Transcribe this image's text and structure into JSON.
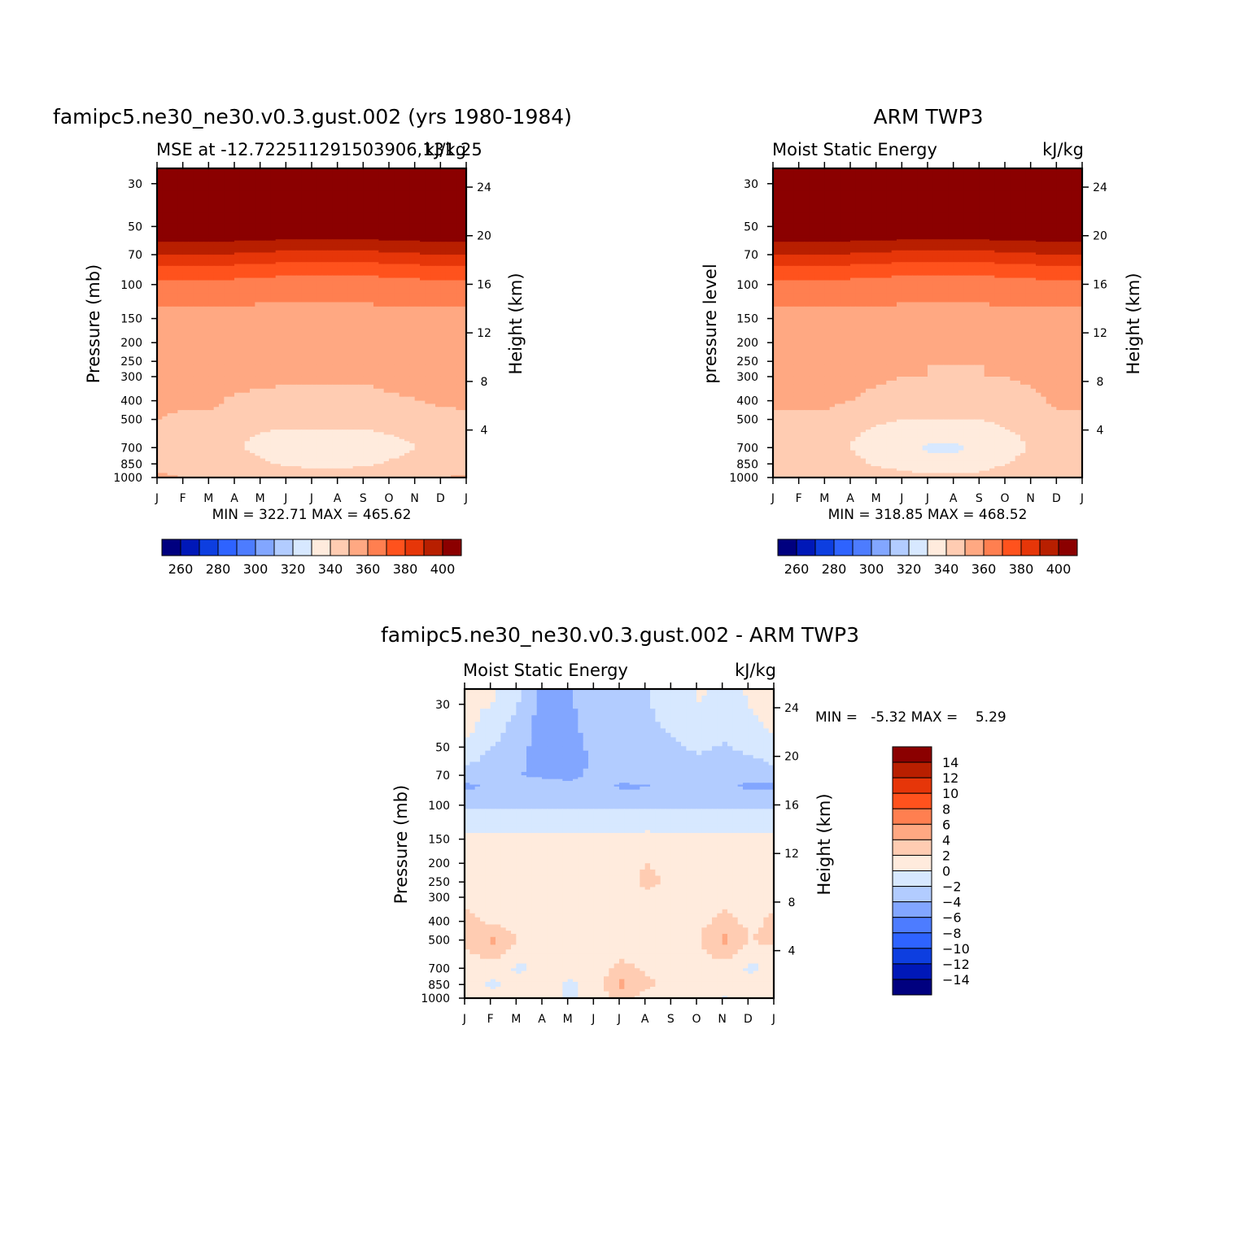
{
  "chart_data": [
    {
      "type": "heatmap",
      "panel": "model",
      "title": "famipc5.ne30_ne30.v0.3.gust.002 (yrs 1980-1984)",
      "subtitle_left": "MSE at -12.722511291503906,131.25",
      "subtitle_right": "kJ/kg",
      "ylabel": "Pressure (mb)",
      "y2label": "Height (km)",
      "x_ticks": [
        "J",
        "F",
        "M",
        "A",
        "M",
        "J",
        "J",
        "A",
        "S",
        "O",
        "N",
        "D",
        "J"
      ],
      "pressure_ticks": [
        30,
        50,
        70,
        100,
        150,
        200,
        250,
        300,
        400,
        500,
        700,
        850,
        1000
      ],
      "height_ticks": [
        4,
        8,
        12,
        16,
        20,
        24
      ],
      "ylim_mb": [
        1000,
        25
      ],
      "stats": "MIN = 322.71 MAX = 465.62",
      "levels_kJkg": [
        {
          "p": 25,
          "v": [
            405,
            405,
            405,
            405,
            405,
            405,
            405,
            405,
            405,
            405,
            405,
            405,
            405
          ]
        },
        {
          "p": 55,
          "v": [
            400,
            400,
            400,
            399,
            398,
            397,
            396,
            396,
            397,
            398,
            399,
            400,
            400
          ]
        },
        {
          "p": 60,
          "v": [
            390,
            390,
            390,
            389,
            388,
            387,
            386,
            386,
            387,
            388,
            389,
            390,
            390
          ]
        },
        {
          "p": 70,
          "v": [
            380,
            380,
            380,
            379,
            378,
            377,
            376,
            376,
            377,
            378,
            379,
            380,
            380
          ]
        },
        {
          "p": 80,
          "v": [
            370,
            370,
            370,
            369,
            368,
            367,
            366,
            366,
            367,
            368,
            369,
            370,
            370
          ]
        },
        {
          "p": 95,
          "v": [
            360,
            360,
            360,
            359,
            358,
            357,
            356,
            356,
            357,
            358,
            359,
            360,
            360
          ]
        },
        {
          "p": 130,
          "v": [
            350,
            350,
            350,
            350,
            349,
            349,
            348,
            348,
            349,
            350,
            350,
            350,
            350
          ]
        },
        {
          "p": 300,
          "v": [
            342,
            342,
            342,
            342,
            342,
            341,
            341,
            341,
            341,
            342,
            342,
            342,
            342
          ]
        },
        {
          "p": 400,
          "v": [
            341,
            341,
            341,
            339,
            338,
            338,
            338,
            338,
            338,
            339,
            340,
            341,
            341
          ]
        },
        {
          "p": 500,
          "v": [
            340,
            339,
            339,
            336,
            334,
            334,
            334,
            334,
            334,
            335,
            336,
            338,
            339
          ]
        },
        {
          "p": 600,
          "v": [
            337,
            336,
            336,
            332,
            329,
            328,
            328,
            328,
            328,
            330,
            332,
            335,
            336
          ]
        },
        {
          "p": 700,
          "v": [
            335,
            334,
            333,
            331,
            327,
            326,
            326,
            326,
            326,
            327,
            330,
            333,
            334
          ]
        },
        {
          "p": 850,
          "v": [
            338,
            337,
            336,
            334,
            331,
            329,
            328,
            328,
            329,
            331,
            334,
            336,
            337
          ]
        },
        {
          "p": 1000,
          "v": [
            341,
            340,
            340,
            338,
            337,
            335,
            334,
            334,
            335,
            337,
            339,
            340,
            341
          ]
        }
      ]
    },
    {
      "type": "heatmap",
      "panel": "obs",
      "title": "ARM TWP3",
      "subtitle_left": "Moist Static Energy",
      "subtitle_right": "kJ/kg",
      "ylabel": "pressure level",
      "y2label": "Height (km)",
      "x_ticks": [
        "J",
        "F",
        "M",
        "A",
        "M",
        "J",
        "J",
        "A",
        "S",
        "O",
        "N",
        "D",
        "J"
      ],
      "pressure_ticks": [
        30,
        50,
        70,
        100,
        150,
        200,
        250,
        300,
        400,
        500,
        700,
        850,
        1000
      ],
      "height_ticks": [
        4,
        8,
        12,
        16,
        20,
        24
      ],
      "ylim_mb": [
        1000,
        25
      ],
      "stats": "MIN = 318.85 MAX = 468.52",
      "levels_kJkg": [
        {
          "p": 25,
          "v": [
            405,
            405,
            405,
            405,
            405,
            405,
            405,
            405,
            405,
            405,
            405,
            405,
            405
          ]
        },
        {
          "p": 55,
          "v": [
            401,
            401,
            401,
            400,
            399,
            398,
            397,
            397,
            398,
            399,
            400,
            401,
            401
          ]
        },
        {
          "p": 60,
          "v": [
            390,
            390,
            390,
            389,
            388,
            387,
            386,
            386,
            387,
            388,
            389,
            390,
            390
          ]
        },
        {
          "p": 70,
          "v": [
            380,
            380,
            380,
            379,
            378,
            377,
            376,
            376,
            377,
            378,
            379,
            380,
            380
          ]
        },
        {
          "p": 80,
          "v": [
            370,
            370,
            370,
            369,
            368,
            367,
            366,
            366,
            367,
            368,
            369,
            370,
            370
          ]
        },
        {
          "p": 95,
          "v": [
            360,
            360,
            360,
            359,
            358,
            357,
            356,
            356,
            357,
            358,
            359,
            360,
            360
          ]
        },
        {
          "p": 130,
          "v": [
            350,
            350,
            350,
            350,
            350,
            349,
            349,
            349,
            349,
            350,
            350,
            350,
            350
          ]
        },
        {
          "p": 300,
          "v": [
            342,
            342,
            342,
            342,
            341,
            340,
            339,
            339,
            339,
            340,
            341,
            342,
            342
          ]
        },
        {
          "p": 400,
          "v": [
            341,
            341,
            341,
            340,
            338,
            337,
            337,
            337,
            337,
            338,
            339,
            341,
            341
          ]
        },
        {
          "p": 500,
          "v": [
            339,
            339,
            339,
            336,
            332,
            330,
            330,
            330,
            330,
            333,
            336,
            339,
            339
          ]
        },
        {
          "p": 600,
          "v": [
            337,
            337,
            336,
            331,
            327,
            325,
            324,
            324,
            325,
            328,
            333,
            336,
            337
          ]
        },
        {
          "p": 700,
          "v": [
            336,
            335,
            334,
            329,
            325,
            323,
            318,
            318,
            322,
            326,
            331,
            335,
            336
          ]
        },
        {
          "p": 850,
          "v": [
            337,
            337,
            336,
            333,
            328,
            326,
            324,
            324,
            326,
            330,
            334,
            337,
            337
          ]
        },
        {
          "p": 1000,
          "v": [
            340,
            340,
            340,
            338,
            336,
            334,
            332,
            332,
            333,
            336,
            338,
            340,
            340
          ]
        }
      ]
    },
    {
      "type": "heatmap",
      "panel": "diff",
      "title": "famipc5.ne30_ne30.v0.3.gust.002 - ARM TWP3",
      "subtitle_left": "Moist Static Energy",
      "subtitle_right": "kJ/kg",
      "ylabel": "Pressure (mb)",
      "y2label": "Height (km)",
      "x_ticks": [
        "J",
        "F",
        "M",
        "A",
        "M",
        "J",
        "J",
        "A",
        "S",
        "O",
        "N",
        "D",
        "J"
      ],
      "pressure_ticks": [
        30,
        50,
        70,
        100,
        150,
        200,
        250,
        300,
        400,
        500,
        700,
        850,
        1000
      ],
      "height_ticks": [
        4,
        8,
        12,
        16,
        20,
        24
      ],
      "ylim_mb": [
        1000,
        25
      ],
      "stats": "MIN =   -5.32 MAX =    5.29",
      "levels_kJkg": [
        {
          "p": 25,
          "v": [
            0.5,
            0.5,
            -1.5,
            -5.2,
            -4.0,
            -3.0,
            -2.5,
            -2.0,
            -1.5,
            0.5,
            -1.0,
            0.5,
            0.5
          ]
        },
        {
          "p": 40,
          "v": [
            0.5,
            -1.0,
            -3.0,
            -5.0,
            -4.5,
            -3.0,
            -2.8,
            -2.2,
            -1.8,
            -1.0,
            -1.5,
            -0.5,
            0.5
          ]
        },
        {
          "p": 55,
          "v": [
            -1.0,
            -2.5,
            -3.5,
            -5.0,
            -5.0,
            -3.5,
            -3.0,
            -2.5,
            -2.5,
            -2.0,
            -2.5,
            -2.0,
            -1.0
          ]
        },
        {
          "p": 70,
          "v": [
            -3.0,
            -3.5,
            -4.0,
            -4.2,
            -4.2,
            -3.8,
            -3.5,
            -3.5,
            -3.0,
            -3.0,
            -3.5,
            -3.5,
            -3.0
          ]
        },
        {
          "p": 80,
          "v": [
            -4.5,
            -3.5,
            -3.5,
            -3.5,
            -3.8,
            -3.6,
            -4.2,
            -4.1,
            -3.5,
            -3.5,
            -3.8,
            -4.3,
            -4.5
          ]
        },
        {
          "p": 100,
          "v": [
            -2.5,
            -2.5,
            -2.5,
            -2.5,
            -2.5,
            -2.5,
            -2.5,
            -2.5,
            -2.5,
            -2.5,
            -2.5,
            -2.5,
            -2.5
          ]
        },
        {
          "p": 130,
          "v": [
            -0.5,
            -0.5,
            -0.5,
            -0.5,
            -0.5,
            -0.5,
            -0.5,
            -0.5,
            -0.5,
            -0.5,
            -0.5,
            -0.5,
            -0.5
          ]
        },
        {
          "p": 160,
          "v": [
            1.0,
            1.0,
            1.0,
            1.0,
            1.0,
            1.0,
            1.0,
            1.5,
            1.0,
            1.0,
            1.0,
            1.0,
            1.0
          ]
        },
        {
          "p": 250,
          "v": [
            1.0,
            1.0,
            1.0,
            1.0,
            1.0,
            1.0,
            1.0,
            2.5,
            1.5,
            1.0,
            1.0,
            1.0,
            1.0
          ]
        },
        {
          "p": 300,
          "v": [
            1.5,
            1.0,
            1.0,
            1.0,
            1.0,
            1.0,
            1.0,
            1.5,
            1.0,
            1.0,
            1.5,
            1.0,
            1.5
          ]
        },
        {
          "p": 400,
          "v": [
            2.5,
            1.5,
            1.0,
            1.0,
            1.0,
            1.0,
            1.0,
            1.0,
            1.0,
            1.5,
            2.5,
            1.5,
            2.5
          ]
        },
        {
          "p": 500,
          "v": [
            2.5,
            4.5,
            2.0,
            1.0,
            1.0,
            1.0,
            1.0,
            1.0,
            1.0,
            2.0,
            4.5,
            2.0,
            2.5
          ]
        },
        {
          "p": 700,
          "v": [
            1.0,
            1.0,
            -0.5,
            1.0,
            1.0,
            1.0,
            2.5,
            1.5,
            1.0,
            1.0,
            1.0,
            -0.5,
            1.0
          ]
        },
        {
          "p": 850,
          "v": [
            1.0,
            -0.5,
            1.0,
            1.0,
            -0.5,
            1.0,
            4.5,
            2.5,
            1.0,
            1.0,
            1.0,
            1.0,
            1.0
          ]
        },
        {
          "p": 1000,
          "v": [
            1.0,
            1.0,
            1.0,
            1.0,
            -0.5,
            1.0,
            2.5,
            1.0,
            1.0,
            1.0,
            -0.2,
            1.0,
            1.0
          ]
        }
      ]
    }
  ],
  "colorbars": {
    "abs": {
      "labels": [
        "260",
        "280",
        "300",
        "320",
        "340",
        "360",
        "380",
        "400"
      ],
      "colors": [
        "#00007f",
        "#0018b8",
        "#0d3ee0",
        "#2e63ff",
        "#4d7cff",
        "#82a6ff",
        "#b2ccff",
        "#d7e8ff",
        "#ffebdd",
        "#ffccb2",
        "#ffa882",
        "#ff7f50",
        "#ff521d",
        "#e63609",
        "#b81f00",
        "#8b0000"
      ]
    },
    "diff": {
      "labels": [
        "14",
        "12",
        "10",
        "8",
        "6",
        "4",
        "2",
        "0",
        "-2",
        "-4",
        "-6",
        "-8",
        "-10",
        "-12",
        "-14"
      ],
      "colors": [
        "#8b0000",
        "#b81f00",
        "#e63609",
        "#ff521d",
        "#ff7f50",
        "#ffa882",
        "#ffccb2",
        "#ffebdd",
        "#d7e8ff",
        "#b2ccff",
        "#82a6ff",
        "#4d7cff",
        "#2e63ff",
        "#0d3ee0",
        "#0018b8",
        "#00007f"
      ]
    }
  }
}
